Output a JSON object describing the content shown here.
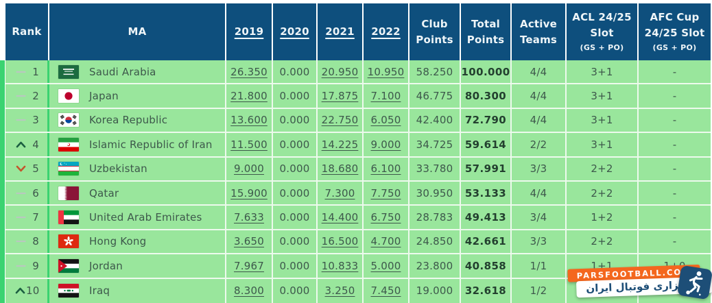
{
  "colors": {
    "header_bg": "#0e4f7d",
    "header_text": "#eef5f8",
    "row_bg": "#99e69c",
    "accent_green": "#3bd371",
    "separator": "#edfaed",
    "cell_text": "#3d584b",
    "total_text": "#23402f",
    "up_arrow": "#1c5f41",
    "down_arrow": "#c4552d",
    "dash": "#b9c8bf",
    "watermark_orange": "#f4671e",
    "watermark_navy": "#1d4e77"
  },
  "table": {
    "columns": [
      {
        "key": "rank",
        "label": "Rank",
        "sub": "",
        "link": false
      },
      {
        "key": "ma",
        "label": "MA",
        "sub": "",
        "link": false
      },
      {
        "key": "y2019",
        "label": "2019",
        "sub": "",
        "link": true
      },
      {
        "key": "y2020",
        "label": "2020",
        "sub": "",
        "link": true
      },
      {
        "key": "y2021",
        "label": "2021",
        "sub": "",
        "link": true
      },
      {
        "key": "y2022",
        "label": "2022",
        "sub": "",
        "link": true
      },
      {
        "key": "club",
        "label": "Club Points",
        "sub": "",
        "link": false
      },
      {
        "key": "total",
        "label": "Total Points",
        "sub": "",
        "link": false
      },
      {
        "key": "active",
        "label": "Active Teams",
        "sub": "",
        "link": false
      },
      {
        "key": "acl",
        "label": "ACL 24/25 Slot",
        "sub": "(GS + PO)",
        "link": false
      },
      {
        "key": "afc",
        "label": "AFC Cup 24/25 Slot",
        "sub": "(GS + PO)",
        "link": false
      }
    ],
    "rows": [
      {
        "movement": "same",
        "rank": "1",
        "flag": "sa",
        "name": "Saudi Arabia",
        "y2019": "26.350",
        "y2020": "0.000",
        "y2021": "20.950",
        "y2022": "10.950",
        "club": "58.250",
        "total": "100.000",
        "active": "4/4",
        "acl": "3+1",
        "afc": "-"
      },
      {
        "movement": "same",
        "rank": "2",
        "flag": "jp",
        "name": "Japan",
        "y2019": "21.800",
        "y2020": "0.000",
        "y2021": "17.875",
        "y2022": "7.100",
        "club": "46.775",
        "total": "80.300",
        "active": "4/4",
        "acl": "3+1",
        "afc": "-"
      },
      {
        "movement": "same",
        "rank": "3",
        "flag": "kr",
        "name": "Korea Republic",
        "y2019": "13.600",
        "y2020": "0.000",
        "y2021": "22.750",
        "y2022": "6.050",
        "club": "42.400",
        "total": "72.790",
        "active": "4/4",
        "acl": "3+1",
        "afc": "-"
      },
      {
        "movement": "up",
        "rank": "4",
        "flag": "ir",
        "name": "Islamic Republic of Iran",
        "y2019": "11.500",
        "y2020": "0.000",
        "y2021": "14.225",
        "y2022": "9.000",
        "club": "34.725",
        "total": "59.614",
        "active": "2/2",
        "acl": "3+1",
        "afc": "-"
      },
      {
        "movement": "down",
        "rank": "5",
        "flag": "uz",
        "name": "Uzbekistan",
        "y2019": "9.000",
        "y2020": "0.000",
        "y2021": "18.680",
        "y2022": "6.100",
        "club": "33.780",
        "total": "57.991",
        "active": "3/3",
        "acl": "2+2",
        "afc": "-"
      },
      {
        "movement": "same",
        "rank": "6",
        "flag": "qa",
        "name": "Qatar",
        "y2019": "15.900",
        "y2020": "0.000",
        "y2021": "7.300",
        "y2022": "7.750",
        "club": "30.950",
        "total": "53.133",
        "active": "4/4",
        "acl": "2+2",
        "afc": "-"
      },
      {
        "movement": "same",
        "rank": "7",
        "flag": "ae",
        "name": "United Arab Emirates",
        "y2019": "7.633",
        "y2020": "0.000",
        "y2021": "14.400",
        "y2022": "6.750",
        "club": "28.783",
        "total": "49.413",
        "active": "3/4",
        "acl": "1+2",
        "afc": "-"
      },
      {
        "movement": "same",
        "rank": "8",
        "flag": "hk",
        "name": "Hong Kong",
        "y2019": "3.650",
        "y2020": "0.000",
        "y2021": "16.500",
        "y2022": "4.700",
        "club": "24.850",
        "total": "42.661",
        "active": "3/3",
        "acl": "2+2",
        "afc": "-"
      },
      {
        "movement": "same",
        "rank": "9",
        "flag": "jo",
        "name": "Jordan",
        "y2019": "7.967",
        "y2020": "0.000",
        "y2021": "10.833",
        "y2022": "5.000",
        "club": "23.800",
        "total": "40.858",
        "active": "1/1",
        "acl": "1+1",
        "afc": "1+0"
      },
      {
        "movement": "up",
        "rank": "10",
        "flag": "iq",
        "name": "Iraq",
        "y2019": "8.300",
        "y2020": "0.000",
        "y2021": "3.250",
        "y2022": "7.450",
        "club": "19.000",
        "total": "32.618",
        "active": "1/2",
        "acl": "",
        "afc": ""
      }
    ]
  },
  "watermark": {
    "site": "PARSFOOTBALL.COM",
    "tagline": "خبرگزاری فوتبال ایران"
  }
}
